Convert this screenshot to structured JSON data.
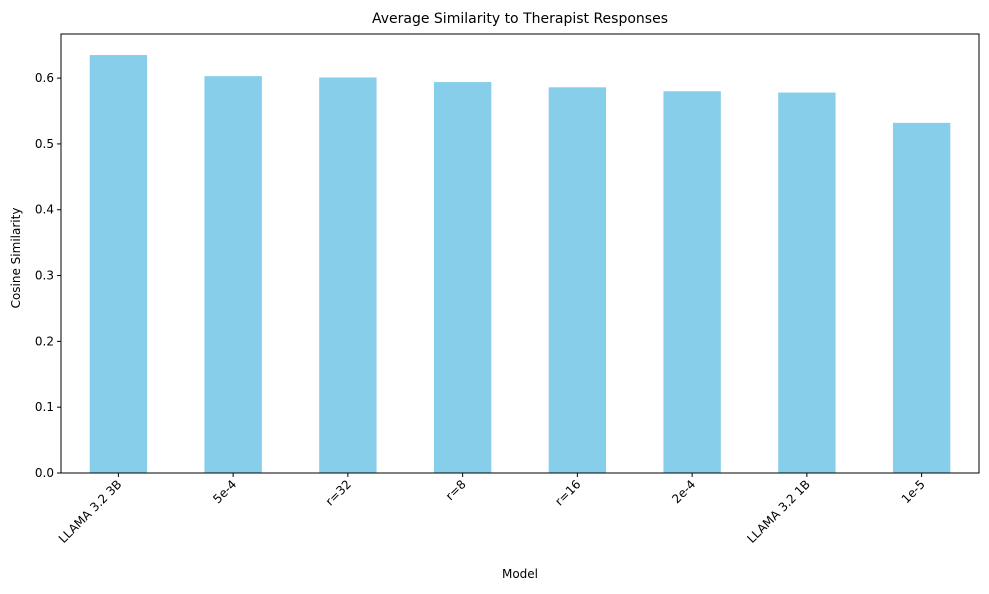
{
  "colors": {
    "bar": "#87ceeb",
    "axis": "#000000",
    "background": "#ffffff"
  },
  "chart_data": {
    "type": "bar",
    "title": "Average Similarity to Therapist Responses",
    "xlabel": "Model",
    "ylabel": "Cosine Similarity",
    "categories": [
      "LLAMA 3.2 3B",
      "5e-4",
      "r=32",
      "r=8",
      "r=16",
      "2e-4",
      "LLAMA 3.2 1B",
      "1e-5"
    ],
    "values": [
      0.635,
      0.603,
      0.601,
      0.594,
      0.586,
      0.58,
      0.578,
      0.532
    ],
    "ylim": [
      0,
      0.667
    ],
    "yticks": [
      0.0,
      0.1,
      0.2,
      0.3,
      0.4,
      0.5,
      0.6
    ],
    "ytick_labels": [
      "0.0",
      "0.1",
      "0.2",
      "0.3",
      "0.4",
      "0.5",
      "0.6"
    ],
    "grid": false,
    "legend": false,
    "xtick_rotation": 45
  }
}
